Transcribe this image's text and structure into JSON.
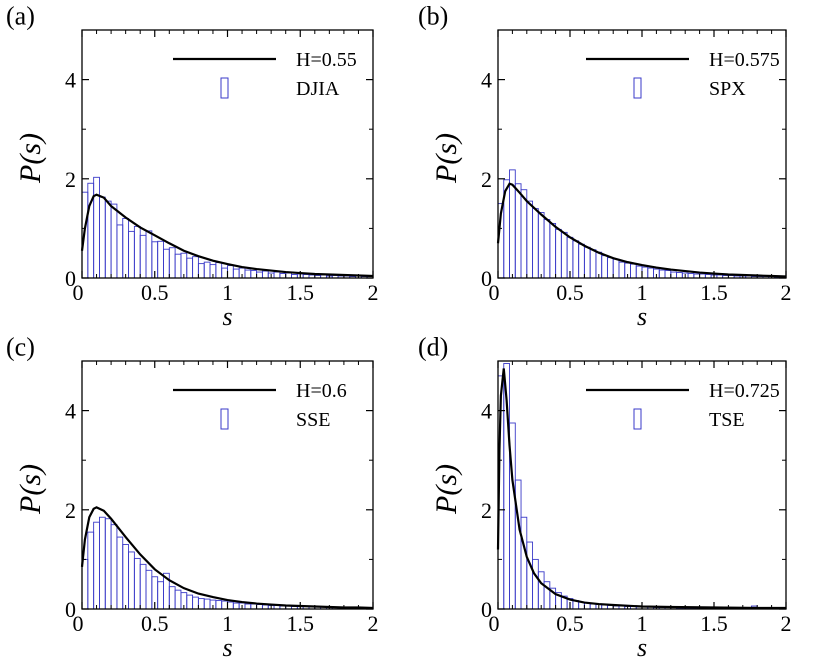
{
  "colors": {
    "bar_edge": "#3a3ac8",
    "line": "#000000",
    "axis": "#000000"
  },
  "chart_data": [
    {
      "type": "bar",
      "panel_label": "(a)",
      "xlabel": "s",
      "ylabel": "P(s)",
      "xlim": [
        0,
        2
      ],
      "ylim": [
        0,
        5
      ],
      "xticks": [
        "0",
        "0.5",
        "1",
        "1.5",
        "2"
      ],
      "yticks": [
        "0",
        "2",
        "4"
      ],
      "legend_position": "top-right",
      "series": [
        {
          "name": "DJIA",
          "kind": "histogram",
          "bin_width": 0.04,
          "values": [
            1.73,
            1.91,
            2.03,
            1.63,
            1.55,
            1.49,
            1.07,
            1.2,
            0.94,
            1.04,
            0.86,
            0.95,
            0.73,
            0.74,
            0.58,
            0.61,
            0.48,
            0.5,
            0.4,
            0.43,
            0.29,
            0.32,
            0.27,
            0.31,
            0.2,
            0.25,
            0.18,
            0.2,
            0.16,
            0.15,
            0.12,
            0.14,
            0.1,
            0.12,
            0.09,
            0.1,
            0.07,
            0.08,
            0.07,
            0.06,
            0.05,
            0.06,
            0.04,
            0.05,
            0.04,
            0.04,
            0.03,
            0.04,
            0.03,
            0.03
          ]
        },
        {
          "name": "H=0.55",
          "kind": "line",
          "x": [
            0,
            0.02,
            0.05,
            0.08,
            0.1,
            0.15,
            0.2,
            0.3,
            0.4,
            0.5,
            0.6,
            0.7,
            0.8,
            0.9,
            1.0,
            1.1,
            1.2,
            1.3,
            1.4,
            1.5,
            1.6,
            1.7,
            1.8,
            1.9,
            2.0
          ],
          "y": [
            0.55,
            1.0,
            1.45,
            1.65,
            1.68,
            1.62,
            1.45,
            1.22,
            1.02,
            0.86,
            0.7,
            0.55,
            0.44,
            0.35,
            0.28,
            0.22,
            0.18,
            0.15,
            0.12,
            0.1,
            0.08,
            0.07,
            0.06,
            0.05,
            0.04
          ]
        }
      ]
    },
    {
      "type": "bar",
      "panel_label": "(b)",
      "xlabel": "s",
      "ylabel": "P(s)",
      "xlim": [
        0,
        2
      ],
      "ylim": [
        0,
        5
      ],
      "xticks": [
        "0",
        "0.5",
        "1",
        "1.5",
        "2"
      ],
      "yticks": [
        "0",
        "2",
        "4"
      ],
      "legend_position": "top-right",
      "series": [
        {
          "name": "SPX",
          "kind": "histogram",
          "bin_width": 0.04,
          "values": [
            1.5,
            1.98,
            2.18,
            1.9,
            1.78,
            1.55,
            1.4,
            1.32,
            1.18,
            1.1,
            0.98,
            0.92,
            0.82,
            0.75,
            0.68,
            0.62,
            0.57,
            0.52,
            0.45,
            0.41,
            0.38,
            0.32,
            0.3,
            0.28,
            0.24,
            0.22,
            0.2,
            0.18,
            0.16,
            0.15,
            0.12,
            0.11,
            0.1,
            0.09,
            0.08,
            0.08,
            0.07,
            0.06,
            0.06,
            0.05,
            0.05,
            0.04,
            0.04,
            0.04,
            0.03,
            0.03,
            0.03,
            0.03,
            0.02,
            0.02
          ]
        },
        {
          "name": "H=0.575",
          "kind": "line",
          "x": [
            0,
            0.02,
            0.05,
            0.08,
            0.1,
            0.15,
            0.2,
            0.3,
            0.4,
            0.5,
            0.6,
            0.7,
            0.8,
            0.9,
            1.0,
            1.1,
            1.2,
            1.3,
            1.4,
            1.5,
            1.6,
            1.7,
            1.8,
            1.9,
            2.0
          ],
          "y": [
            0.7,
            1.3,
            1.75,
            1.9,
            1.88,
            1.72,
            1.55,
            1.28,
            1.03,
            0.82,
            0.65,
            0.51,
            0.4,
            0.32,
            0.26,
            0.21,
            0.17,
            0.14,
            0.11,
            0.09,
            0.07,
            0.06,
            0.05,
            0.04,
            0.03
          ]
        }
      ]
    },
    {
      "type": "bar",
      "panel_label": "(c)",
      "xlabel": "s",
      "ylabel": "P(s)",
      "xlim": [
        0,
        2
      ],
      "ylim": [
        0,
        5
      ],
      "xticks": [
        "0",
        "0.5",
        "1",
        "1.5",
        "2"
      ],
      "yticks": [
        "0",
        "2",
        "4"
      ],
      "legend_position": "top-right",
      "series": [
        {
          "name": "SSE",
          "kind": "histogram",
          "bin_width": 0.04,
          "values": [
            1.0,
            1.55,
            1.75,
            1.85,
            1.82,
            1.7,
            1.45,
            1.3,
            1.15,
            1.02,
            0.9,
            0.78,
            0.65,
            0.55,
            0.72,
            0.45,
            0.38,
            0.33,
            0.28,
            0.24,
            0.21,
            0.2,
            0.18,
            0.17,
            0.16,
            0.14,
            0.12,
            0.12,
            0.1,
            0.1,
            0.09,
            0.08,
            0.07,
            0.07,
            0.06,
            0.06,
            0.05,
            0.05,
            0.05,
            0.04,
            0.04,
            0.04,
            0.03,
            0.03,
            0.03,
            0.03,
            0.02,
            0.02,
            0.02,
            0.02
          ]
        },
        {
          "name": "H=0.6",
          "kind": "line",
          "x": [
            0,
            0.02,
            0.05,
            0.08,
            0.1,
            0.15,
            0.2,
            0.3,
            0.4,
            0.5,
            0.6,
            0.7,
            0.8,
            0.9,
            1.0,
            1.1,
            1.2,
            1.3,
            1.4,
            1.5,
            1.6,
            1.7,
            1.8,
            1.9,
            2.0
          ],
          "y": [
            0.85,
            1.4,
            1.85,
            2.02,
            2.05,
            1.98,
            1.82,
            1.45,
            1.1,
            0.8,
            0.58,
            0.42,
            0.31,
            0.24,
            0.18,
            0.14,
            0.11,
            0.09,
            0.07,
            0.06,
            0.05,
            0.04,
            0.03,
            0.03,
            0.02
          ]
        }
      ]
    },
    {
      "type": "bar",
      "panel_label": "(d)",
      "xlabel": "s",
      "ylabel": "P(s)",
      "xlim": [
        0,
        2
      ],
      "ylim": [
        0,
        5
      ],
      "xticks": [
        "0",
        "0.5",
        "1",
        "1.5",
        "2"
      ],
      "yticks": [
        "0",
        "2",
        "4"
      ],
      "legend_position": "top-right",
      "series": [
        {
          "name": "TSE",
          "kind": "histogram",
          "bin_width": 0.04,
          "values": [
            4.7,
            4.95,
            3.75,
            2.6,
            1.85,
            1.35,
            1.0,
            0.75,
            0.55,
            0.42,
            0.33,
            0.26,
            0.21,
            0.17,
            0.14,
            0.12,
            0.1,
            0.09,
            0.08,
            0.07,
            0.06,
            0.06,
            0.05,
            0.05,
            0.04,
            0.04,
            0.04,
            0.03,
            0.03,
            0.03,
            0.03,
            0.02,
            0.02,
            0.02,
            0.02,
            0.02,
            0.02,
            0.02,
            0.02,
            0.02,
            0.02,
            0.02,
            0.02,
            0.02,
            0.06,
            0.02,
            0.02,
            0.02,
            0.02,
            0.02
          ]
        },
        {
          "name": "H=0.725",
          "kind": "line",
          "x": [
            0,
            0.01,
            0.02,
            0.04,
            0.06,
            0.08,
            0.1,
            0.15,
            0.2,
            0.25,
            0.3,
            0.4,
            0.5,
            0.6,
            0.7,
            0.8,
            1.0,
            1.2,
            1.5,
            1.8,
            2.0
          ],
          "y": [
            1.2,
            3.2,
            4.3,
            4.85,
            4.2,
            3.3,
            2.6,
            1.6,
            1.05,
            0.72,
            0.52,
            0.3,
            0.19,
            0.13,
            0.1,
            0.08,
            0.05,
            0.04,
            0.03,
            0.02,
            0.02
          ]
        }
      ]
    }
  ]
}
